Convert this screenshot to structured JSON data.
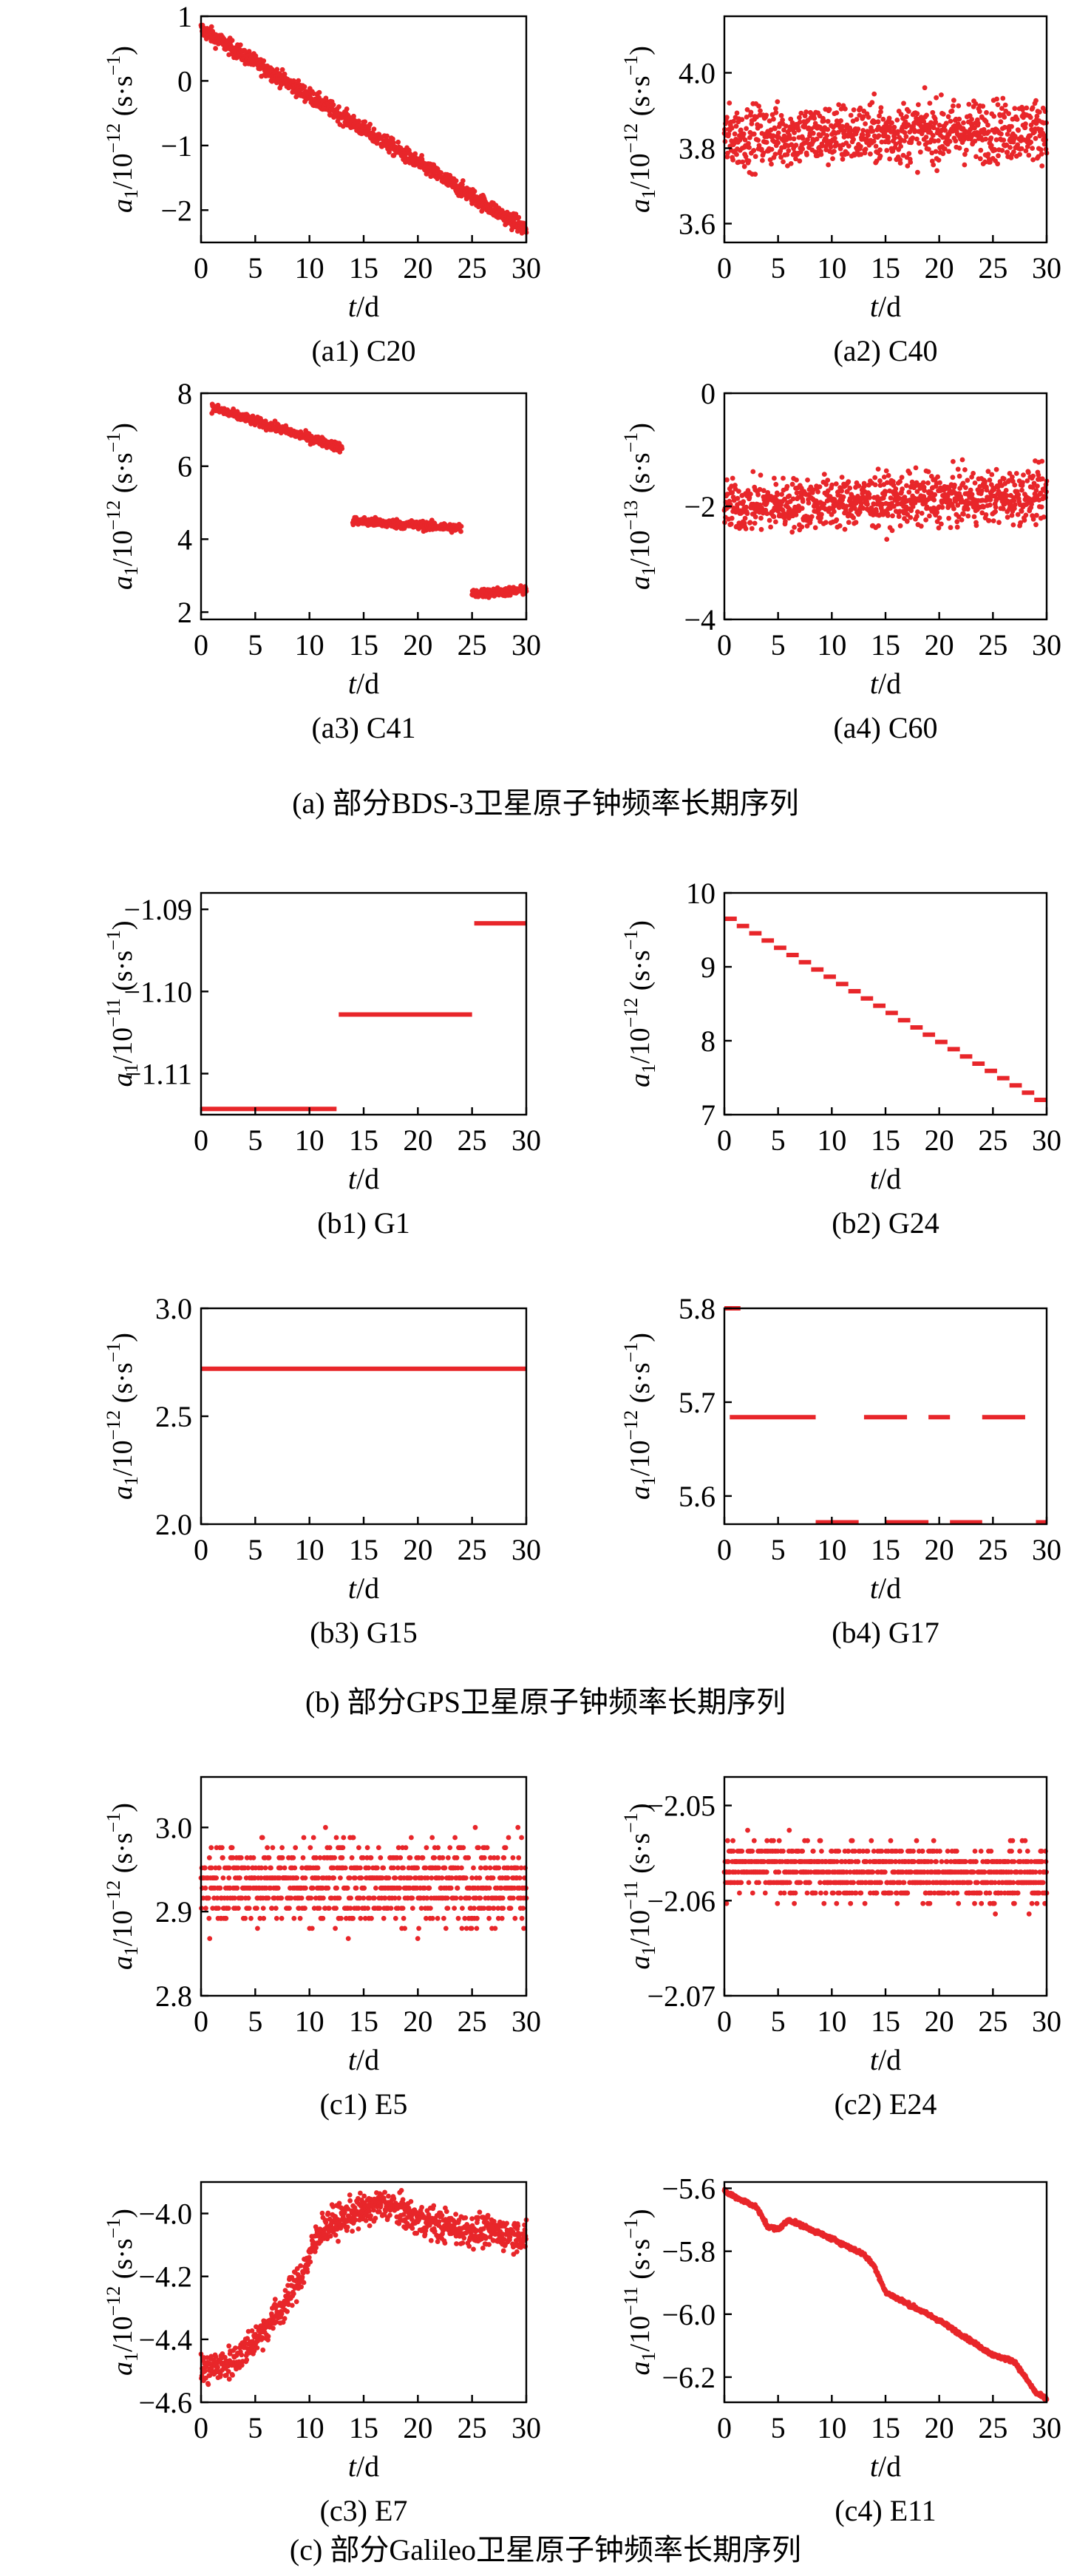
{
  "groups": [
    {
      "caption": "(a) 部分BDS-3卫星原子钟频率长期序列",
      "panels": [
        {
          "caption": "(a1) C20",
          "ylabel_exp": "−12",
          "xlabel": "t/d",
          "yticks": [
            "1",
            "0",
            "−1",
            "−2"
          ],
          "xticks": [
            "0",
            "5",
            "10",
            "15",
            "20",
            "25",
            "30"
          ]
        },
        {
          "caption": "(a2) C40",
          "ylabel_exp": "−12",
          "xlabel": "t/d",
          "yticks": [
            "4.0",
            "3.8",
            "3.6"
          ],
          "xticks": [
            "0",
            "5",
            "10",
            "15",
            "20",
            "25",
            "30"
          ]
        },
        {
          "caption": "(a3) C41",
          "ylabel_exp": "−12",
          "xlabel": "t/d",
          "yticks": [
            "8",
            "6",
            "4",
            "2"
          ],
          "xticks": [
            "0",
            "5",
            "10",
            "15",
            "20",
            "25",
            "30"
          ]
        },
        {
          "caption": "(a4) C60",
          "ylabel_exp": "−13",
          "xlabel": "t/d",
          "yticks": [
            "0",
            "−2",
            "−4"
          ],
          "xticks": [
            "0",
            "5",
            "10",
            "15",
            "20",
            "25",
            "30"
          ]
        }
      ]
    },
    {
      "caption": "(b) 部分GPS卫星原子钟频率长期序列",
      "panels": [
        {
          "caption": "(b1) G1",
          "ylabel_exp": "−11",
          "xlabel": "t/d",
          "yticks": [
            "−1.09",
            "−1.10",
            "−1.11"
          ],
          "xticks": [
            "0",
            "5",
            "10",
            "15",
            "20",
            "25",
            "30"
          ]
        },
        {
          "caption": "(b2) G24",
          "ylabel_exp": "−12",
          "xlabel": "t/d",
          "yticks": [
            "10",
            "9",
            "8",
            "7"
          ],
          "xticks": [
            "0",
            "5",
            "10",
            "15",
            "20",
            "25",
            "30"
          ]
        },
        {
          "caption": "(b3) G15",
          "ylabel_exp": "−12",
          "xlabel": "t/d",
          "yticks": [
            "3.0",
            "2.5",
            "2.0"
          ],
          "xticks": [
            "0",
            "5",
            "10",
            "15",
            "20",
            "25",
            "30"
          ]
        },
        {
          "caption": "(b4) G17",
          "ylabel_exp": "−12",
          "xlabel": "t/d",
          "yticks": [
            "5.8",
            "5.7",
            "5.6"
          ],
          "xticks": [
            "0",
            "5",
            "10",
            "15",
            "20",
            "25",
            "30"
          ]
        }
      ]
    },
    {
      "caption": "(c) 部分Galileo卫星原子钟频率长期序列",
      "panels": [
        {
          "caption": "(c1) E5",
          "ylabel_exp": "−12",
          "xlabel": "t/d",
          "yticks": [
            "3.0",
            "2.9",
            "2.8"
          ],
          "xticks": [
            "0",
            "5",
            "10",
            "15",
            "20",
            "25",
            "30"
          ]
        },
        {
          "caption": "(c2) E24",
          "ylabel_exp": "−11",
          "xlabel": "t/d",
          "yticks": [
            "−2.05",
            "−2.06",
            "−2.07"
          ],
          "xticks": [
            "0",
            "5",
            "10",
            "15",
            "20",
            "25",
            "30"
          ]
        },
        {
          "caption": "(c3) E7",
          "ylabel_exp": "−12",
          "xlabel": "t/d",
          "yticks": [
            "−4.0",
            "−4.2",
            "−4.4",
            "−4.6"
          ],
          "xticks": [
            "0",
            "5",
            "10",
            "15",
            "20",
            "25",
            "30"
          ]
        },
        {
          "caption": "(c4) E11",
          "ylabel_exp": "−11",
          "xlabel": "t/d",
          "yticks": [
            "−5.6",
            "−5.8",
            "−6.0",
            "−6.2"
          ],
          "xticks": [
            "0",
            "5",
            "10",
            "15",
            "20",
            "25",
            "30"
          ]
        }
      ]
    }
  ],
  "ylabel": {
    "var": "a",
    "sub": "1",
    "base": "/10",
    "unit": " (s·s",
    "unit_exp": "−1",
    "close": ")"
  },
  "chart_data": [
    {
      "type": "scatter",
      "panel": "(a1) C20",
      "xlim": [
        0,
        30
      ],
      "ylim": [
        -2.5,
        1.0
      ],
      "yticks": [
        1,
        0,
        -1,
        -2
      ],
      "color": "#e8262a",
      "segments": [
        {
          "x": [
            0,
            30
          ],
          "y": [
            0.8,
            -2.3
          ]
        }
      ],
      "noise": 0.12
    },
    {
      "type": "scatter",
      "panel": "(a2) C40",
      "xlim": [
        0,
        30
      ],
      "ylim": [
        3.55,
        4.15
      ],
      "yticks": [
        4.0,
        3.8,
        3.6
      ],
      "color": "#e8262a",
      "segments": [
        {
          "x": [
            0,
            30
          ],
          "y": [
            3.83,
            3.85
          ]
        }
      ],
      "noise": 0.08
    },
    {
      "type": "scatter",
      "panel": "(a3) C41",
      "xlim": [
        0,
        30
      ],
      "ylim": [
        1.8,
        8.0
      ],
      "yticks": [
        8,
        6,
        4,
        2
      ],
      "color": "#e8262a",
      "segments": [
        {
          "x": [
            1,
            13
          ],
          "y": [
            7.6,
            6.5
          ]
        },
        {
          "x": [
            14,
            24
          ],
          "y": [
            4.5,
            4.3
          ]
        },
        {
          "x": [
            25,
            30
          ],
          "y": [
            2.5,
            2.6
          ]
        }
      ],
      "noise": 0.12
    },
    {
      "type": "scatter",
      "panel": "(a4) C60",
      "xlim": [
        0,
        30
      ],
      "ylim": [
        -4,
        0
      ],
      "yticks": [
        0,
        -2,
        -4
      ],
      "color": "#e8262a",
      "segments": [
        {
          "x": [
            0,
            30
          ],
          "y": [
            -2.0,
            -1.8
          ]
        }
      ],
      "noise": 0.45
    },
    {
      "type": "scatter",
      "panel": "(b1) G1",
      "xlim": [
        0,
        30
      ],
      "ylim": [
        -1.115,
        -1.088
      ],
      "yticks": [
        -1.09,
        -1.1,
        -1.11
      ],
      "color": "#e8262a",
      "segments": [
        {
          "x": [
            0,
            12.5
          ],
          "y": [
            -1.1143,
            -1.1143
          ]
        },
        {
          "x": [
            12.7,
            25
          ],
          "y": [
            -1.1028,
            -1.1028
          ]
        },
        {
          "x": [
            25.2,
            30
          ],
          "y": [
            -1.0917,
            -1.0917
          ]
        }
      ],
      "noise": 0
    },
    {
      "type": "scatter",
      "panel": "(b2) G24",
      "xlim": [
        0,
        30
      ],
      "ylim": [
        7.0,
        10.0
      ],
      "yticks": [
        10,
        9,
        8,
        7
      ],
      "color": "#e8262a",
      "segments": [
        {
          "x": [
            0,
            30
          ],
          "y": [
            9.65,
            7.2
          ]
        }
      ],
      "noise": 0,
      "steps": 26
    },
    {
      "type": "scatter",
      "panel": "(b3) G15",
      "xlim": [
        0,
        30
      ],
      "ylim": [
        2.0,
        3.0
      ],
      "yticks": [
        3.0,
        2.5,
        2.0
      ],
      "color": "#e8262a",
      "segments": [
        {
          "x": [
            0,
            30
          ],
          "y": [
            2.72,
            2.72
          ]
        }
      ],
      "noise": 0
    },
    {
      "type": "scatter",
      "panel": "(b4) G17",
      "xlim": [
        0,
        30
      ],
      "ylim": [
        5.57,
        5.8
      ],
      "yticks": [
        5.8,
        5.7,
        5.6
      ],
      "color": "#e8262a",
      "segments": [
        {
          "x": [
            0,
            1.5
          ],
          "y": [
            5.8,
            5.8
          ]
        },
        {
          "x": [
            0.5,
            8.5
          ],
          "y": [
            5.684,
            5.684
          ]
        },
        {
          "x": [
            13,
            17
          ],
          "y": [
            5.684,
            5.684
          ]
        },
        {
          "x": [
            19,
            21
          ],
          "y": [
            5.684,
            5.684
          ]
        },
        {
          "x": [
            24,
            28
          ],
          "y": [
            5.684,
            5.684
          ]
        },
        {
          "x": [
            8.5,
            12.5
          ],
          "y": [
            5.572,
            5.572
          ]
        },
        {
          "x": [
            15,
            19
          ],
          "y": [
            5.572,
            5.572
          ]
        },
        {
          "x": [
            21,
            24
          ],
          "y": [
            5.572,
            5.572
          ]
        },
        {
          "x": [
            29,
            30
          ],
          "y": [
            5.572,
            5.572
          ]
        }
      ],
      "noise": 0
    },
    {
      "type": "scatter",
      "panel": "(c1) E5",
      "xlim": [
        0,
        30
      ],
      "ylim": [
        2.8,
        3.06
      ],
      "yticks": [
        3.0,
        2.9,
        2.8
      ],
      "color": "#e8262a",
      "segments": [
        {
          "x": [
            0,
            30
          ],
          "y": [
            2.935,
            2.935
          ]
        }
      ],
      "noise": 0.05,
      "quant": 0.012
    },
    {
      "type": "scatter",
      "panel": "(c2) E24",
      "xlim": [
        0,
        30
      ],
      "ylim": [
        -2.07,
        -2.047
      ],
      "yticks": [
        -2.05,
        -2.06,
        -2.07
      ],
      "color": "#e8262a",
      "segments": [
        {
          "x": [
            0,
            30
          ],
          "y": [
            -2.0565,
            -2.0575
          ]
        }
      ],
      "noise": 0.0028,
      "quant": 0.0011
    },
    {
      "type": "line",
      "panel": "(c3) E7",
      "xlim": [
        0,
        30
      ],
      "ylim": [
        -4.6,
        -3.9
      ],
      "yticks": [
        -4.0,
        -4.2,
        -4.4,
        -4.6
      ],
      "color": "#e8262a",
      "segments": [
        {
          "x": [
            0,
            3,
            5.5,
            7.5,
            9.5,
            11,
            14,
            17,
            20,
            24,
            30
          ],
          "y": [
            -4.5,
            -4.47,
            -4.38,
            -4.3,
            -4.18,
            -4.05,
            -4.0,
            -3.97,
            -4.02,
            -4.05,
            -4.07
          ]
        }
      ],
      "noise": 0.05
    },
    {
      "type": "line",
      "panel": "(c4) E11",
      "xlim": [
        0,
        30
      ],
      "ylim": [
        -6.28,
        -5.58
      ],
      "yticks": [
        -5.6,
        -5.8,
        -6.0,
        -6.2
      ],
      "color": "#e8262a",
      "segments": [
        {
          "x": [
            0,
            3,
            4,
            5,
            6,
            10,
            13,
            14,
            15,
            20,
            25,
            27,
            28,
            29,
            30
          ],
          "y": [
            -5.61,
            -5.66,
            -5.72,
            -5.73,
            -5.7,
            -5.76,
            -5.81,
            -5.85,
            -5.93,
            -6.02,
            -6.13,
            -6.15,
            -6.2,
            -6.25,
            -6.27
          ]
        }
      ],
      "noise": 0.006
    }
  ]
}
